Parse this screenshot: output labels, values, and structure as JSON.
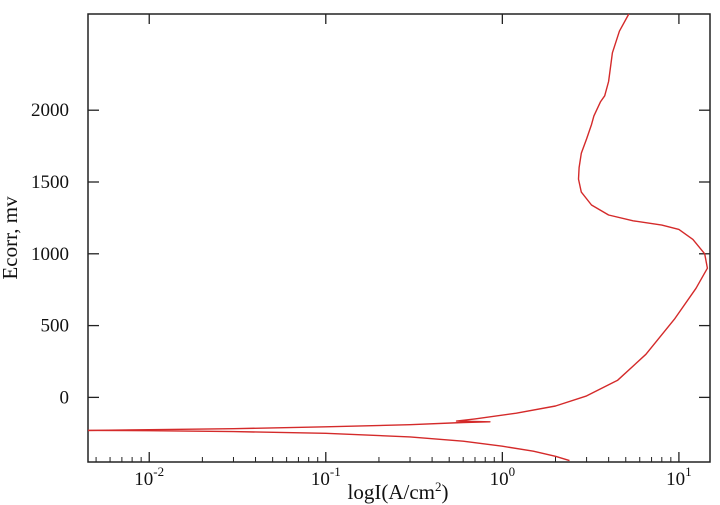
{
  "chart_data": {
    "type": "line",
    "xlabel": "logI(A/cm",
    "xlabel_sup": "2",
    "xlabel_close": ")",
    "ylabel": "Ecorr, mv",
    "x_scale": "log",
    "xlim": [
      0.0045,
      15
    ],
    "ylim": [
      -450,
      2670
    ],
    "grid": false,
    "x_ticks": [
      {
        "value": 0.01,
        "base": "10",
        "exp": "-2"
      },
      {
        "value": 0.1,
        "base": "10",
        "exp": "-1"
      },
      {
        "value": 1,
        "base": "10",
        "exp": "0"
      },
      {
        "value": 10,
        "base": "10",
        "exp": "1"
      }
    ],
    "y_ticks": [
      {
        "value": 0,
        "label": "0"
      },
      {
        "value": 500,
        "label": "500"
      },
      {
        "value": 1000,
        "label": "1000"
      },
      {
        "value": 1500,
        "label": "1500"
      },
      {
        "value": 2000,
        "label": "2000"
      }
    ],
    "series": [
      {
        "color": "#d42a2a",
        "points": [
          [
            0.0045,
            -230
          ],
          [
            0.01,
            -225
          ],
          [
            0.03,
            -218
          ],
          [
            0.1,
            -205
          ],
          [
            0.3,
            -190
          ],
          [
            0.6,
            -175
          ],
          [
            0.85,
            -170
          ],
          [
            0.55,
            -165
          ],
          [
            0.7,
            -150
          ],
          [
            1.2,
            -110
          ],
          [
            2.0,
            -60
          ],
          [
            3.0,
            10
          ],
          [
            4.5,
            120
          ],
          [
            6.5,
            300
          ],
          [
            9.5,
            550
          ],
          [
            12.5,
            760
          ],
          [
            14.5,
            900
          ],
          [
            14.0,
            1000
          ],
          [
            12.0,
            1100
          ],
          [
            10.0,
            1170
          ],
          [
            8.0,
            1200
          ],
          [
            5.5,
            1230
          ],
          [
            4.0,
            1270
          ],
          [
            3.2,
            1340
          ],
          [
            2.8,
            1430
          ],
          [
            2.7,
            1520
          ],
          [
            2.72,
            1600
          ],
          [
            2.8,
            1700
          ],
          [
            3.0,
            1800
          ],
          [
            3.2,
            1900
          ],
          [
            3.3,
            1960
          ],
          [
            3.6,
            2060
          ],
          [
            3.8,
            2100
          ],
          [
            4.0,
            2200
          ],
          [
            4.2,
            2400
          ],
          [
            4.6,
            2550
          ],
          [
            5.2,
            2670
          ]
        ]
      },
      {
        "color": "#d42a2a",
        "points": [
          [
            0.0045,
            -230
          ],
          [
            0.01,
            -232
          ],
          [
            0.03,
            -238
          ],
          [
            0.1,
            -250
          ],
          [
            0.3,
            -275
          ],
          [
            0.6,
            -305
          ],
          [
            1.0,
            -340
          ],
          [
            1.5,
            -375
          ],
          [
            2.0,
            -410
          ],
          [
            2.4,
            -440
          ]
        ]
      }
    ]
  }
}
